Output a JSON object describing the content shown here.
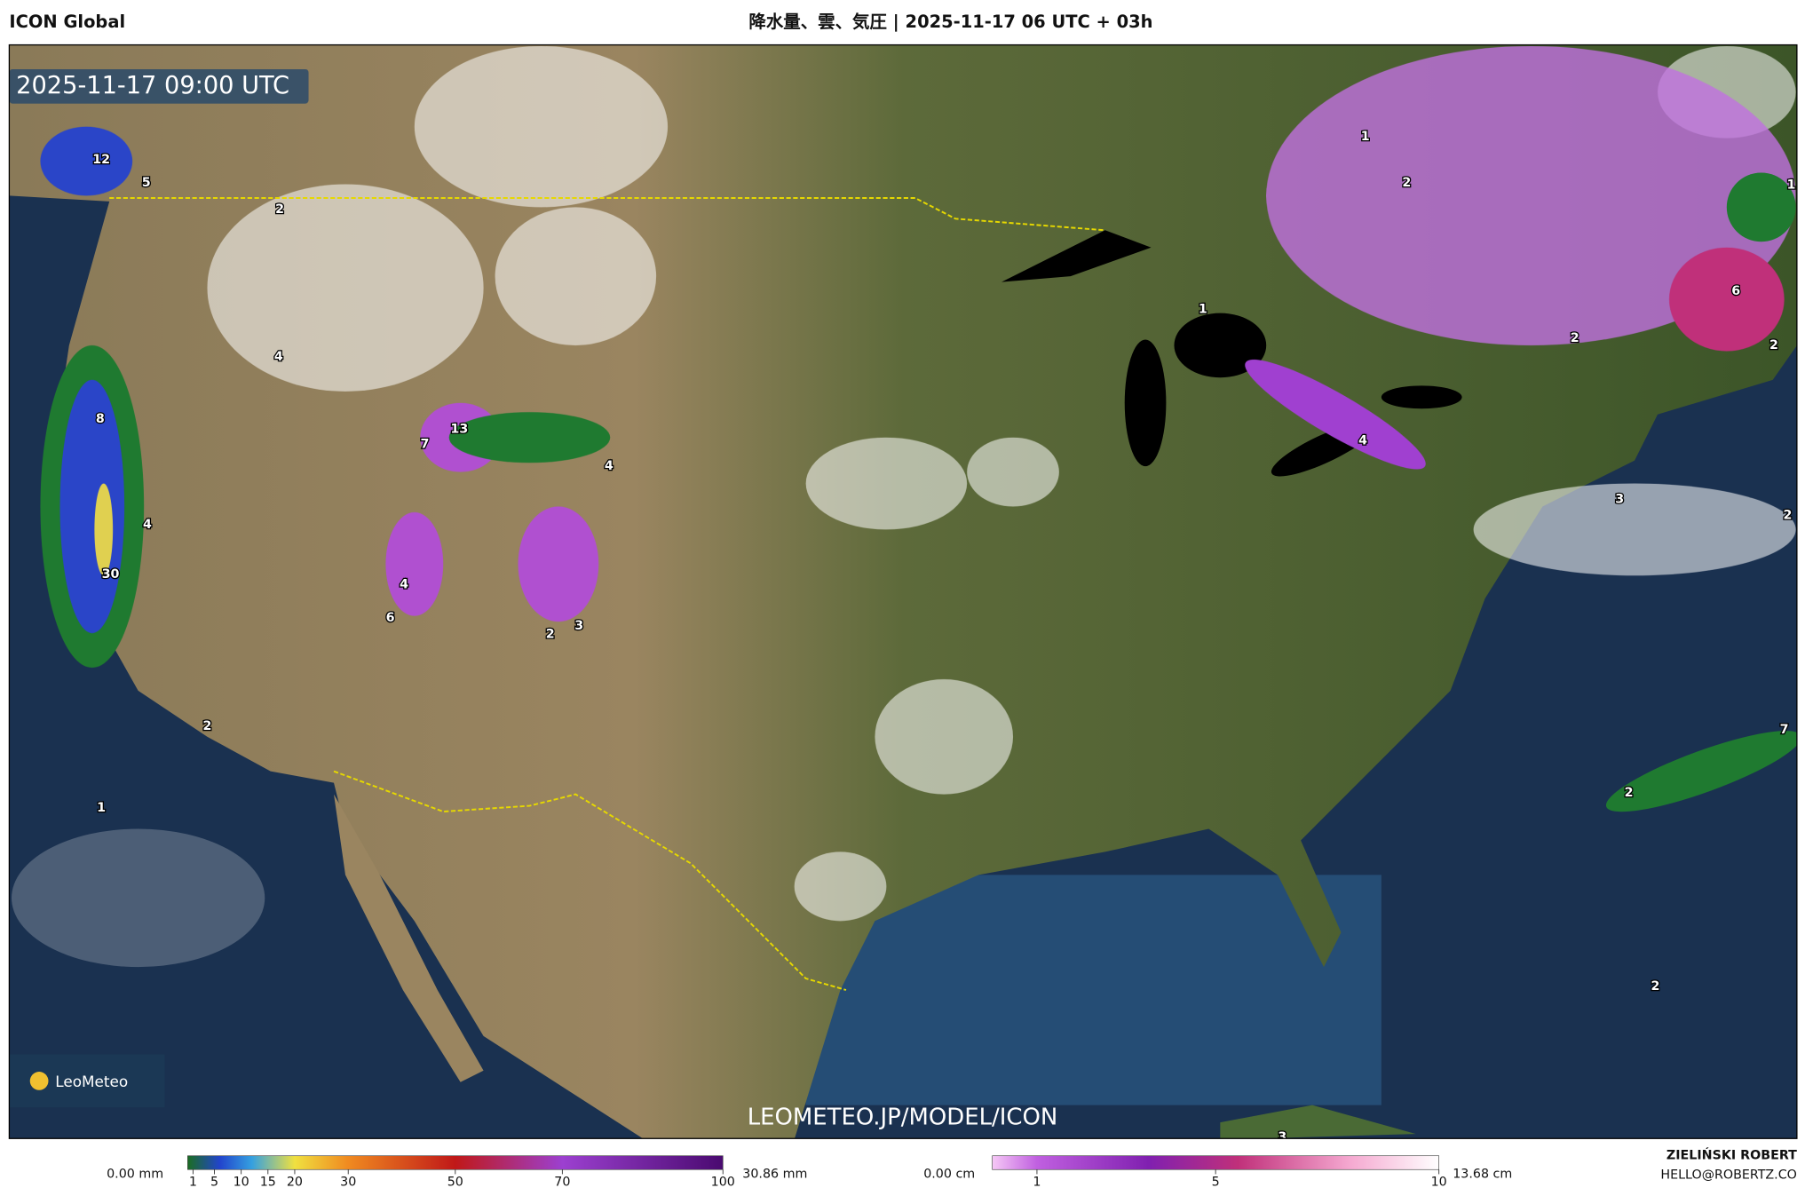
{
  "header": {
    "model": "ICON Global",
    "title": "降水量、雲、気圧 | 2025-11-17 06 UTC + 03h"
  },
  "map": {
    "valid_time": "2025-11-17 09:00 UTC",
    "logo": "LeoMeteo",
    "watermark": "LEOMETEO.JP/MODEL/ICON",
    "labels": [
      "12",
      "5",
      "2",
      "4",
      "8",
      "7",
      "13",
      "4",
      "4",
      "30",
      "4",
      "6",
      "2",
      "3",
      "2",
      "1",
      "1",
      "2",
      "1",
      "6",
      "2",
      "2",
      "4",
      "3",
      "2",
      "1",
      "7",
      "2",
      "2",
      "3"
    ]
  },
  "legend": {
    "precipitation": {
      "min_label": "0.00 mm",
      "max_label": "30.86 mm",
      "range": [
        0,
        100
      ],
      "ticks": [
        1,
        5,
        10,
        15,
        20,
        30,
        50,
        70,
        100
      ]
    },
    "snow": {
      "min_label": "0.00 cm",
      "max_label": "13.68 cm",
      "range": [
        0,
        10
      ],
      "ticks": [
        1,
        5,
        10
      ]
    }
  },
  "footer": {
    "author": "ZIELIŃSKI ROBERT",
    "contact": "HELLO@ROBERTZ.CO"
  }
}
